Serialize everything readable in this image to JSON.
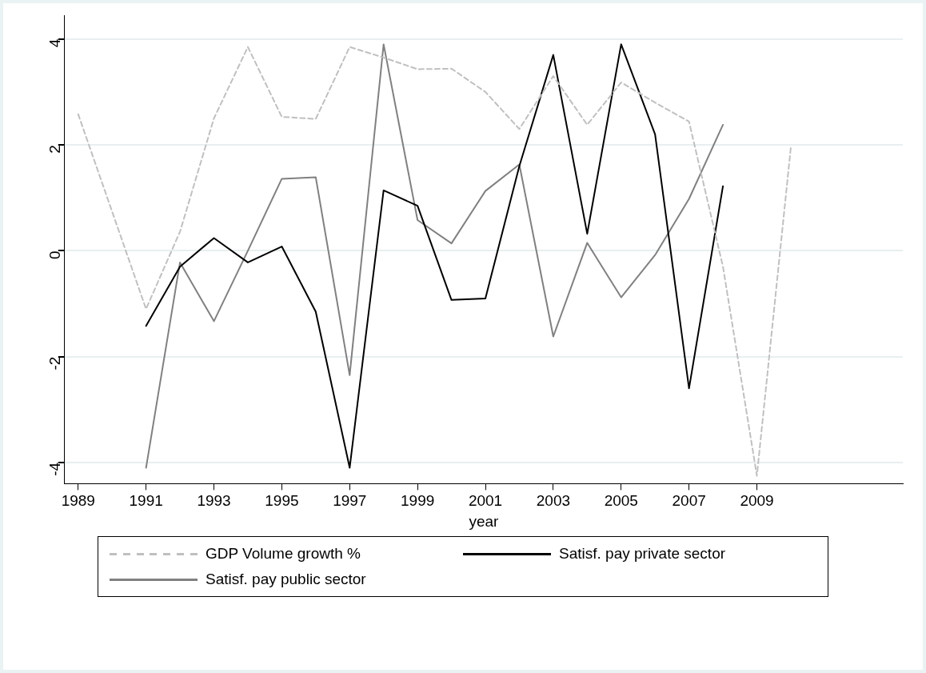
{
  "chart_data": {
    "type": "line",
    "xlabel": "year",
    "x": [
      1989,
      1990,
      1991,
      1992,
      1993,
      1994,
      1995,
      1996,
      1997,
      1998,
      1999,
      2000,
      2001,
      2002,
      2003,
      2004,
      2005,
      2006,
      2007,
      2008,
      2009,
      2010
    ],
    "xlim": [
      1988.6,
      2013.3
    ],
    "xticks": [
      1989,
      1991,
      1993,
      1995,
      1997,
      1999,
      2001,
      2003,
      2005,
      2007,
      2009
    ],
    "ylim": [
      -4.4,
      4.45
    ],
    "yticks": [
      -4,
      -2,
      0,
      2,
      4
    ],
    "grid": "y",
    "legend": "bottom",
    "marker": "none",
    "series": [
      {
        "name": "GDP Volume growth %",
        "color": "#c0c0c0",
        "line_style": "dashed",
        "values": [
          2.58,
          0.74,
          -1.1,
          0.36,
          2.5,
          3.85,
          2.53,
          2.49,
          3.85,
          3.65,
          3.43,
          3.44,
          3.0,
          2.3,
          3.3,
          2.38,
          3.18,
          2.8,
          2.44,
          -0.3,
          -4.25,
          1.95
        ]
      },
      {
        "name": "Satisf. pay private sector",
        "color": "#000000",
        "line_style": "solid",
        "values": [
          null,
          null,
          -1.42,
          -0.3,
          0.24,
          -0.22,
          0.08,
          -1.15,
          -4.1,
          1.14,
          0.85,
          -0.93,
          -0.9,
          1.6,
          3.7,
          0.32,
          3.9,
          2.2,
          -2.6,
          1.22,
          null,
          null
        ]
      },
      {
        "name": "Satisf. pay public sector",
        "color": "#808080",
        "line_style": "solid",
        "values": [
          null,
          null,
          -4.1,
          -0.22,
          -1.33,
          0.0,
          1.36,
          1.39,
          -2.35,
          3.9,
          0.58,
          0.14,
          1.13,
          1.63,
          -1.62,
          0.15,
          -0.88,
          -0.08,
          0.98,
          2.38,
          null,
          null
        ]
      }
    ]
  }
}
